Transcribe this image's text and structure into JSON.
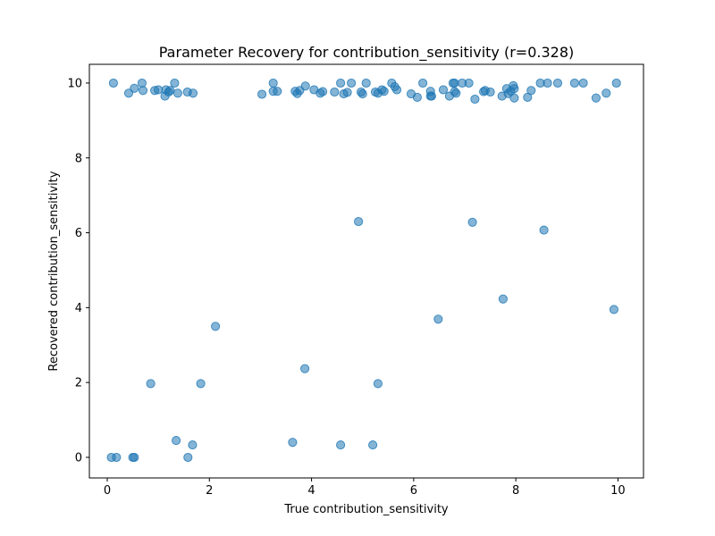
{
  "chart_data": {
    "type": "scatter",
    "title": "Parameter Recovery for contribution_sensitivity (r=0.328)",
    "xlabel": "True contribution_sensitivity",
    "ylabel": "Recovered contribution_sensitivity",
    "xlim": [
      -0.35,
      10.5
    ],
    "ylim": [
      -0.55,
      10.5
    ],
    "xticks": [
      0,
      2,
      4,
      6,
      8,
      10
    ],
    "yticks": [
      0,
      2,
      4,
      6,
      8,
      10
    ],
    "grid": false,
    "marker_color": "#1f77b4",
    "marker_alpha": 0.55,
    "points": [
      [
        0.12,
        10.0
      ],
      [
        0.42,
        9.73
      ],
      [
        0.53,
        9.86
      ],
      [
        0.68,
        10.0
      ],
      [
        0.7,
        9.8
      ],
      [
        0.93,
        9.8
      ],
      [
        1.0,
        9.82
      ],
      [
        1.13,
        9.65
      ],
      [
        1.15,
        9.82
      ],
      [
        1.2,
        9.76
      ],
      [
        1.23,
        9.8
      ],
      [
        1.32,
        10.0
      ],
      [
        1.38,
        9.73
      ],
      [
        1.57,
        9.76
      ],
      [
        1.68,
        9.73
      ],
      [
        3.03,
        9.7
      ],
      [
        3.25,
        9.78
      ],
      [
        3.25,
        10.0
      ],
      [
        3.33,
        9.78
      ],
      [
        3.68,
        9.78
      ],
      [
        3.72,
        9.72
      ],
      [
        3.77,
        9.8
      ],
      [
        3.88,
        9.92
      ],
      [
        4.05,
        9.82
      ],
      [
        4.17,
        9.73
      ],
      [
        4.22,
        9.77
      ],
      [
        4.45,
        9.76
      ],
      [
        4.57,
        10.0
      ],
      [
        4.63,
        9.71
      ],
      [
        4.7,
        9.75
      ],
      [
        4.78,
        10.0
      ],
      [
        4.97,
        9.76
      ],
      [
        5.0,
        9.71
      ],
      [
        5.07,
        10.0
      ],
      [
        5.25,
        9.76
      ],
      [
        5.3,
        9.73
      ],
      [
        5.38,
        9.82
      ],
      [
        5.42,
        9.78
      ],
      [
        5.57,
        10.0
      ],
      [
        5.63,
        9.9
      ],
      [
        5.67,
        9.82
      ],
      [
        5.95,
        9.71
      ],
      [
        6.07,
        9.62
      ],
      [
        6.18,
        10.0
      ],
      [
        6.33,
        9.78
      ],
      [
        6.33,
        9.65
      ],
      [
        6.35,
        9.65
      ],
      [
        6.58,
        9.82
      ],
      [
        6.7,
        9.65
      ],
      [
        6.77,
        10.0
      ],
      [
        6.8,
        9.77
      ],
      [
        6.83,
        9.73
      ],
      [
        6.8,
        10.0
      ],
      [
        6.95,
        10.0
      ],
      [
        7.08,
        10.0
      ],
      [
        7.2,
        9.57
      ],
      [
        7.37,
        9.77
      ],
      [
        7.4,
        9.8
      ],
      [
        7.5,
        9.76
      ],
      [
        7.73,
        9.65
      ],
      [
        7.82,
        9.85
      ],
      [
        7.85,
        9.72
      ],
      [
        7.9,
        9.78
      ],
      [
        7.95,
        9.93
      ],
      [
        7.97,
        9.85
      ],
      [
        7.97,
        9.6
      ],
      [
        8.23,
        9.62
      ],
      [
        8.3,
        9.8
      ],
      [
        8.48,
        10.0
      ],
      [
        8.62,
        10.0
      ],
      [
        8.82,
        10.0
      ],
      [
        9.15,
        10.0
      ],
      [
        9.32,
        10.0
      ],
      [
        9.57,
        9.6
      ],
      [
        9.77,
        9.73
      ],
      [
        9.97,
        10.0
      ],
      [
        4.92,
        6.3
      ],
      [
        7.15,
        6.28
      ],
      [
        8.55,
        6.07
      ],
      [
        7.75,
        4.23
      ],
      [
        6.48,
        3.69
      ],
      [
        9.92,
        3.95
      ],
      [
        2.12,
        3.5
      ],
      [
        3.87,
        2.37
      ],
      [
        0.85,
        1.97
      ],
      [
        1.83,
        1.97
      ],
      [
        5.3,
        1.97
      ],
      [
        1.35,
        0.45
      ],
      [
        1.67,
        0.33
      ],
      [
        3.63,
        0.4
      ],
      [
        4.57,
        0.33
      ],
      [
        5.2,
        0.33
      ],
      [
        0.08,
        0.0
      ],
      [
        0.18,
        0.0
      ],
      [
        0.5,
        0.0
      ],
      [
        0.53,
        0.0
      ],
      [
        1.58,
        0.0
      ]
    ]
  }
}
